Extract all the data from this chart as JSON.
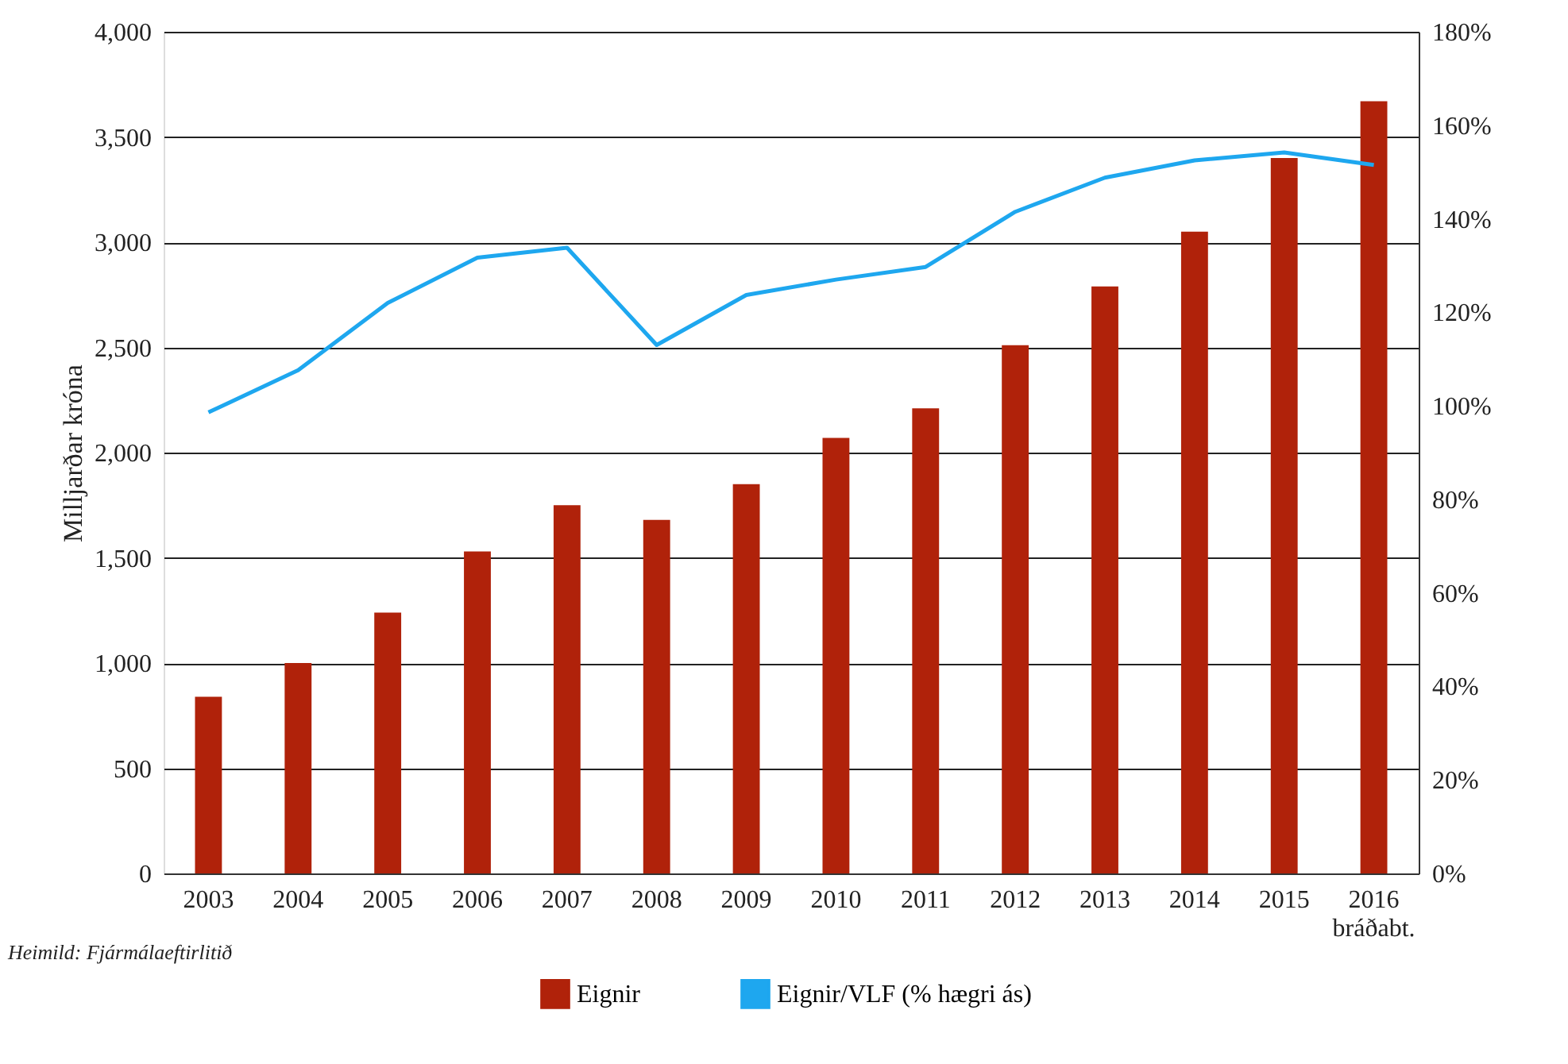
{
  "chart_data": {
    "type": "bar",
    "ylabel": "Milljarðar króna",
    "categories": [
      "2003",
      "2004",
      "2005",
      "2006",
      "2007",
      "2008",
      "2009",
      "2010",
      "2011",
      "2012",
      "2013",
      "2014",
      "2015",
      "2016\nbráðabt."
    ],
    "series": [
      {
        "name": "Eignir",
        "color": "#b0220a",
        "values": [
          840,
          1000,
          1240,
          1530,
          1750,
          1680,
          1850,
          2070,
          2210,
          2510,
          2790,
          3050,
          3400,
          3670
        ]
      },
      {
        "name": "Eignir/VLF (% hægri ás)",
        "type": "line",
        "axis": "y2",
        "color": "#1ea7ef",
        "values": [
          98.6,
          107.6,
          122,
          131.7,
          133.8,
          113,
          123.7,
          127,
          129.7,
          141.5,
          148.8,
          152.5,
          154.2,
          151.5
        ]
      }
    ],
    "ylim": [
      0,
      4000
    ],
    "yticks": [
      {
        "value": 0,
        "label": "0"
      },
      {
        "value": 500,
        "label": "500"
      },
      {
        "value": 1000,
        "label": "1,000"
      },
      {
        "value": 1500,
        "label": "1,500"
      },
      {
        "value": 2000,
        "label": "2,000"
      },
      {
        "value": 2500,
        "label": "2,500"
      },
      {
        "value": 3000,
        "label": "3,000"
      },
      {
        "value": 3500,
        "label": "3,500"
      },
      {
        "value": 4000,
        "label": "4,000"
      }
    ],
    "y2lim": [
      0,
      180
    ],
    "y2ticks": [
      {
        "value": 0,
        "label": "0%"
      },
      {
        "value": 20,
        "label": "20%"
      },
      {
        "value": 40,
        "label": "40%"
      },
      {
        "value": 60,
        "label": "60%"
      },
      {
        "value": 80,
        "label": "80%"
      },
      {
        "value": 100,
        "label": "100%"
      },
      {
        "value": 120,
        "label": "120%"
      },
      {
        "value": 140,
        "label": "140%"
      },
      {
        "value": 160,
        "label": "160%"
      },
      {
        "value": 180,
        "label": "180%"
      }
    ],
    "grid": "y",
    "legend": "bottom",
    "marker": "none",
    "line_style": "solid",
    "annotations": [
      "Heimild:  Fjármálaeftirlitið"
    ]
  }
}
